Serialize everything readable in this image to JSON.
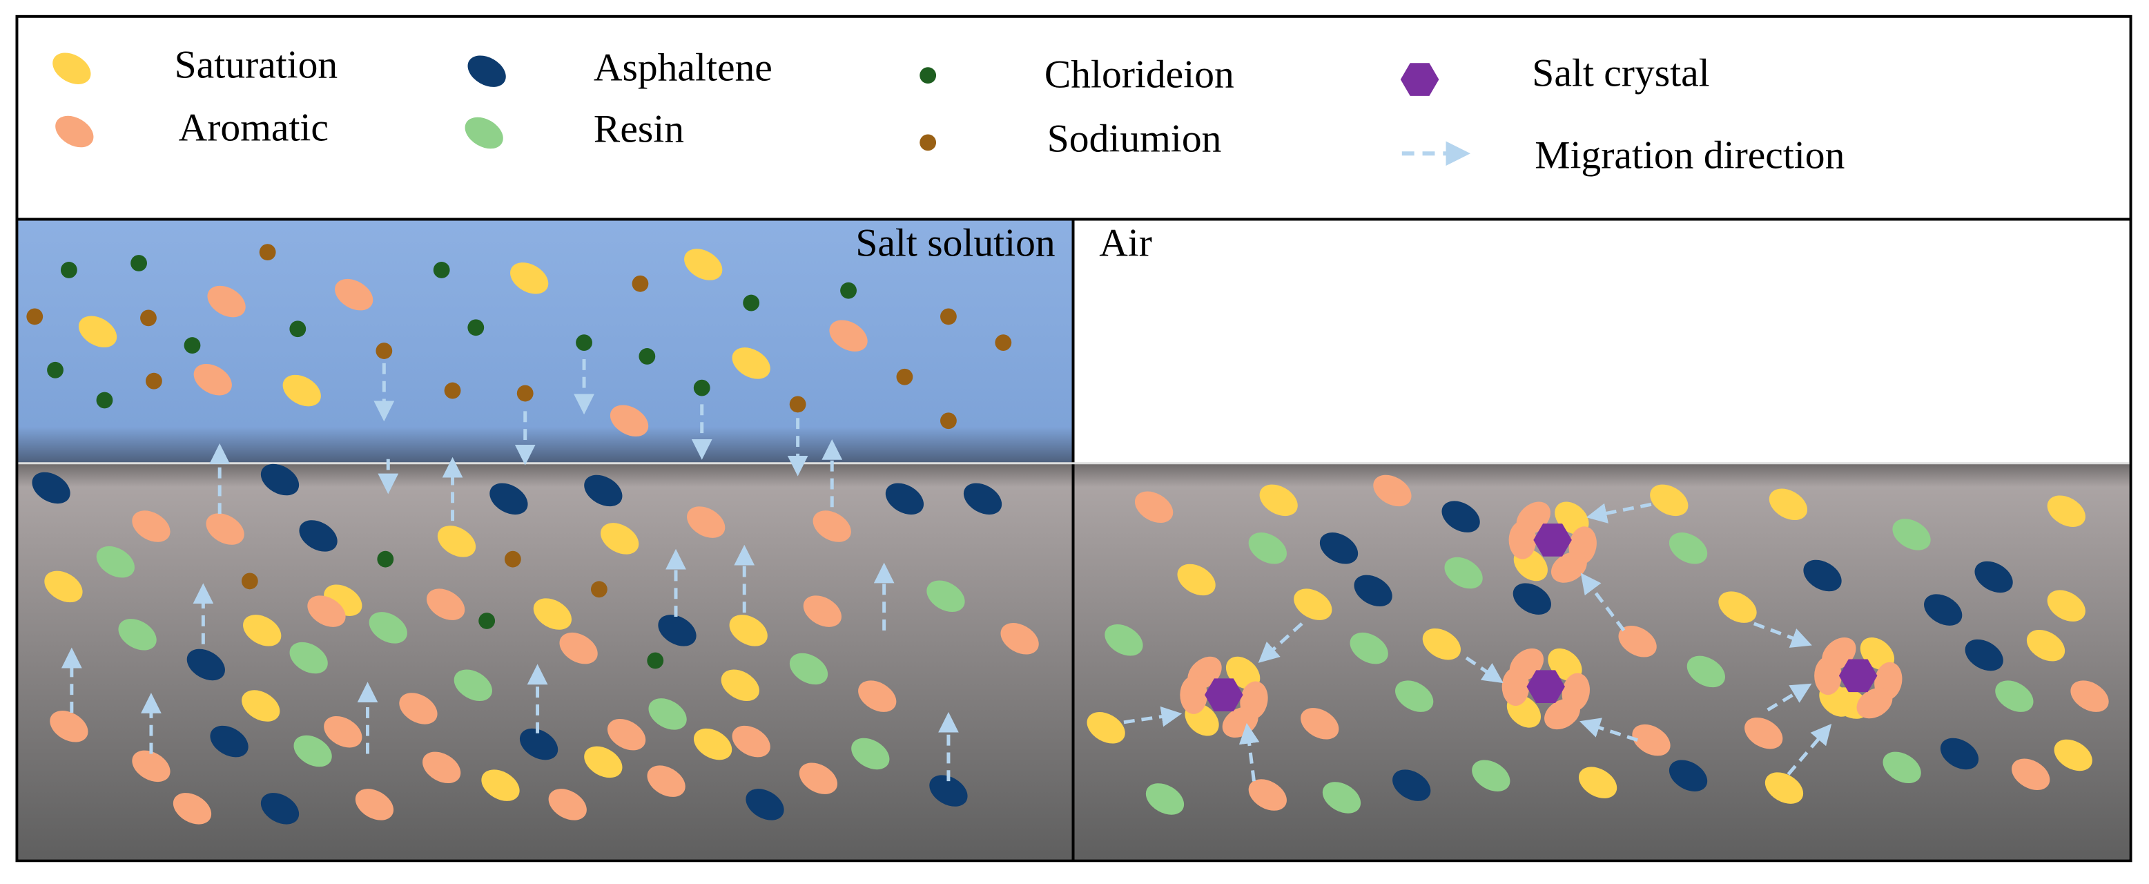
{
  "legend": {
    "items": [
      {
        "label": "Saturation"
      },
      {
        "label": "Aromatic"
      },
      {
        "label": "Asphaltene"
      },
      {
        "label": "Resin"
      },
      {
        "label": "Chlorideion"
      },
      {
        "label": "Sodiumion"
      },
      {
        "label": "Salt crystal"
      },
      {
        "label": "Migration direction"
      }
    ]
  },
  "panels": {
    "left_label": "Salt solution",
    "right_label": "Air"
  }
}
